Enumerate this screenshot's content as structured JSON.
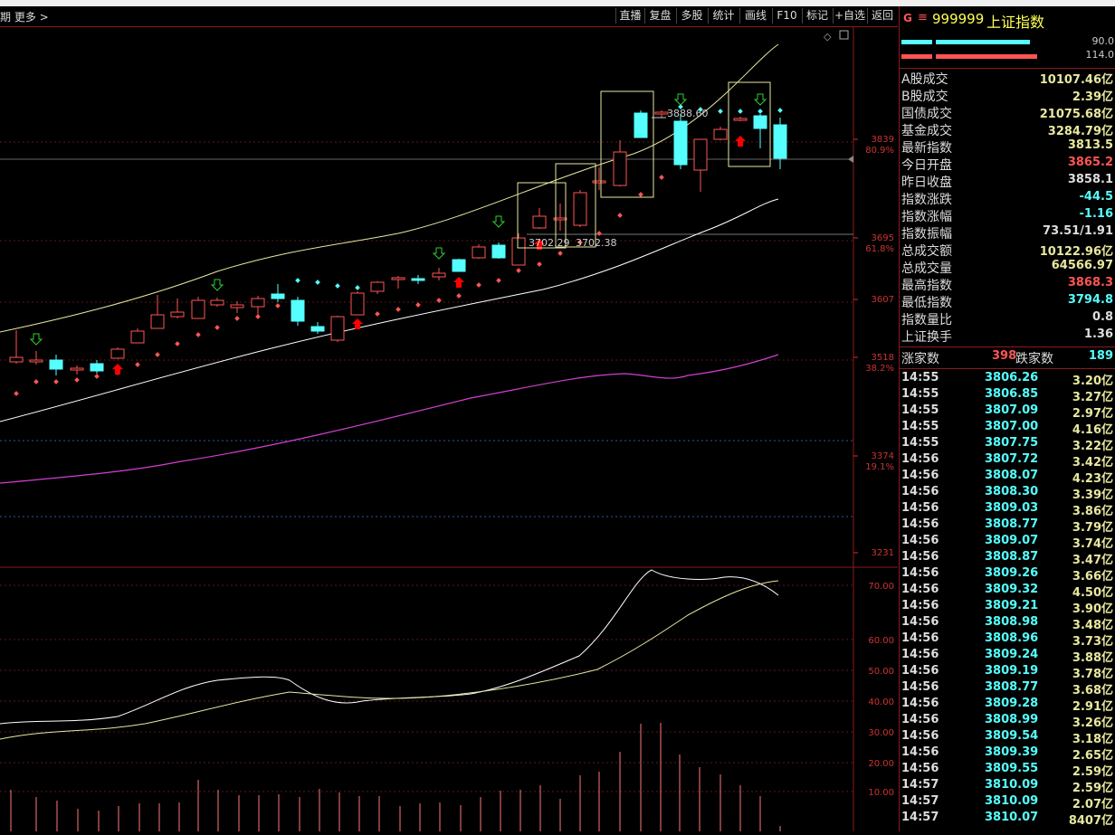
{
  "toolbar": {
    "left_label": "期  更多 >",
    "buttons": [
      "直播",
      "复盘",
      "多股",
      "统计",
      "画线",
      "F10",
      "标记",
      "+自选",
      "返回"
    ]
  },
  "chart": {
    "price_axis": [
      {
        "label": "3839",
        "pct": "80.9%"
      },
      {
        "label": "3695",
        "pct": "61.8%"
      },
      {
        "label": "3607",
        "pct": ""
      },
      {
        "label": "3518",
        "pct": "38.2%"
      },
      {
        "label": "3374",
        "pct": "19.1%"
      },
      {
        "label": "3231",
        "pct": ""
      }
    ],
    "indicator_axis": [
      "70.00",
      "60.00",
      "50.00",
      "40.00",
      "30.00",
      "20.00",
      "10.00"
    ],
    "annotations": {
      "high_label": "3888.60",
      "low_label_1": "3702.29",
      "low_label_2": "3702.38"
    }
  },
  "panel": {
    "title_prefix": "G",
    "title_eq": "≡",
    "code": "999999",
    "name": "上证指数",
    "bar_vals": [
      "90.0",
      "114.0"
    ],
    "stats": [
      {
        "label": "A股成交",
        "value": "10107.46亿",
        "color": "#e8e8a0"
      },
      {
        "label": "B股成交",
        "value": "2.39亿",
        "color": "#e8e8a0"
      },
      {
        "label": "国债成交",
        "value": "21075.68亿",
        "color": "#e8e8a0"
      },
      {
        "label": "基金成交",
        "value": "3284.79亿",
        "color": "#e8e8a0"
      },
      {
        "label": "最新指数",
        "value": "3813.5",
        "color": "#e8e8a0"
      },
      {
        "label": "今日开盘",
        "value": "3865.2",
        "color": "#ff5555"
      },
      {
        "label": "昨日收盘",
        "value": "3858.1",
        "color": "#dddddd"
      },
      {
        "label": "指数涨跌",
        "value": "-44.5",
        "color": "#5ff"
      },
      {
        "label": "指数涨幅",
        "value": "-1.16",
        "color": "#5ff"
      },
      {
        "label": "指数振幅",
        "value": "73.51/1.91",
        "color": "#dddddd"
      },
      {
        "label": "总成交额",
        "value": "10122.96亿",
        "color": "#e8e8a0"
      },
      {
        "label": "总成交量",
        "value": "64566.97",
        "color": "#e8e8a0"
      },
      {
        "label": "最高指数",
        "value": "3868.3",
        "color": "#ff5555"
      },
      {
        "label": "最低指数",
        "value": "3794.8",
        "color": "#5ff"
      },
      {
        "label": "指数量比",
        "value": "0.8",
        "color": "#dddddd"
      },
      {
        "label": "上证换手",
        "value": "1.36",
        "color": "#dddddd"
      }
    ],
    "breadth": {
      "up_label": "涨家数",
      "up": "398",
      "down_label": "跌家数",
      "down": "189"
    },
    "ticks": [
      {
        "t": "14:55",
        "p": "3806.26",
        "v": "3.20亿"
      },
      {
        "t": "14:55",
        "p": "3806.85",
        "v": "3.27亿"
      },
      {
        "t": "14:55",
        "p": "3807.09",
        "v": "2.97亿"
      },
      {
        "t": "14:55",
        "p": "3807.00",
        "v": "4.16亿"
      },
      {
        "t": "14:55",
        "p": "3807.75",
        "v": "3.22亿"
      },
      {
        "t": "14:56",
        "p": "3807.72",
        "v": "3.42亿"
      },
      {
        "t": "14:56",
        "p": "3808.07",
        "v": "4.23亿"
      },
      {
        "t": "14:56",
        "p": "3808.30",
        "v": "3.39亿"
      },
      {
        "t": "14:56",
        "p": "3809.03",
        "v": "3.86亿"
      },
      {
        "t": "14:56",
        "p": "3808.77",
        "v": "3.79亿"
      },
      {
        "t": "14:56",
        "p": "3809.07",
        "v": "3.74亿"
      },
      {
        "t": "14:56",
        "p": "3808.87",
        "v": "3.47亿"
      },
      {
        "t": "14:56",
        "p": "3809.26",
        "v": "3.66亿"
      },
      {
        "t": "14:56",
        "p": "3809.32",
        "v": "4.50亿"
      },
      {
        "t": "14:56",
        "p": "3809.21",
        "v": "3.90亿"
      },
      {
        "t": "14:56",
        "p": "3808.98",
        "v": "3.48亿"
      },
      {
        "t": "14:56",
        "p": "3808.96",
        "v": "3.73亿"
      },
      {
        "t": "14:56",
        "p": "3809.24",
        "v": "3.88亿"
      },
      {
        "t": "14:56",
        "p": "3809.19",
        "v": "3.78亿"
      },
      {
        "t": "14:56",
        "p": "3808.77",
        "v": "3.68亿"
      },
      {
        "t": "14:56",
        "p": "3809.28",
        "v": "2.91亿"
      },
      {
        "t": "14:56",
        "p": "3808.99",
        "v": "3.26亿"
      },
      {
        "t": "14:56",
        "p": "3809.54",
        "v": "3.18亿"
      },
      {
        "t": "14:56",
        "p": "3809.39",
        "v": "2.65亿"
      },
      {
        "t": "14:56",
        "p": "3809.55",
        "v": "2.59亿"
      },
      {
        "t": "14:57",
        "p": "3810.09",
        "v": "2.59亿"
      },
      {
        "t": "14:57",
        "p": "3810.09",
        "v": "2.07亿"
      },
      {
        "t": "14:57",
        "p": "3810.07",
        "v": "8407亿"
      }
    ]
  }
}
